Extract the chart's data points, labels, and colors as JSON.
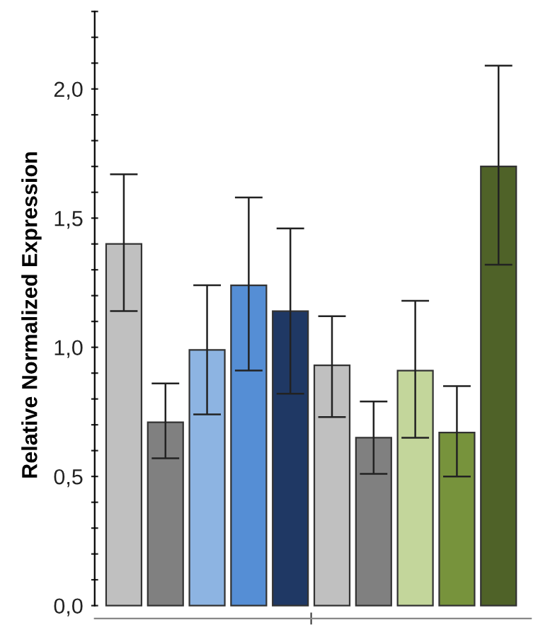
{
  "chart_data": {
    "type": "bar",
    "ylabel": "Relative Normalized Expression",
    "categories": [
      null,
      null,
      null,
      null,
      null,
      null,
      null,
      null,
      null,
      null
    ],
    "values": [
      1.4,
      0.71,
      0.99,
      1.24,
      1.14,
      0.93,
      0.65,
      0.91,
      0.67,
      1.7
    ],
    "errors": [
      [
        1.14,
        1.67
      ],
      [
        0.57,
        0.86
      ],
      [
        0.74,
        1.24
      ],
      [
        0.91,
        1.58
      ],
      [
        0.82,
        1.46
      ],
      [
        0.73,
        1.12
      ],
      [
        0.51,
        0.79
      ],
      [
        0.65,
        1.18
      ],
      [
        0.5,
        0.85
      ],
      [
        1.32,
        2.09
      ]
    ],
    "colors": [
      "#c0c0c0",
      "#808080",
      "#8db4e2",
      "#558ed5",
      "#1f3864",
      "#c0c0c0",
      "#808080",
      "#c3d69b",
      "#77933c",
      "#4f6228"
    ],
    "ylim": [
      -0.05,
      2.3
    ],
    "yticks": [
      {
        "value": 0,
        "label": "0,0"
      },
      {
        "value": 0.1,
        "label": null
      },
      {
        "value": 0.2,
        "label": null
      },
      {
        "value": 0.3,
        "label": null
      },
      {
        "value": 0.4,
        "label": null
      },
      {
        "value": 0.5,
        "label": "0,5"
      },
      {
        "value": 0.6,
        "label": null
      },
      {
        "value": 0.7,
        "label": null
      },
      {
        "value": 0.8,
        "label": null
      },
      {
        "value": 0.9,
        "label": null
      },
      {
        "value": 1.0,
        "label": "1,0"
      },
      {
        "value": 1.1,
        "label": null
      },
      {
        "value": 1.2,
        "label": null
      },
      {
        "value": 1.3,
        "label": null
      },
      {
        "value": 1.4,
        "label": null
      },
      {
        "value": 1.5,
        "label": "1,5"
      },
      {
        "value": 1.6,
        "label": null
      },
      {
        "value": 1.7,
        "label": null
      },
      {
        "value": 1.8,
        "label": null
      },
      {
        "value": 1.9,
        "label": null
      },
      {
        "value": 2.0,
        "label": "2,0"
      },
      {
        "value": 2.1,
        "label": null
      },
      {
        "value": 2.2,
        "label": null
      },
      {
        "value": 2.3,
        "label": null
      }
    ],
    "grid": false,
    "legend": false
  }
}
